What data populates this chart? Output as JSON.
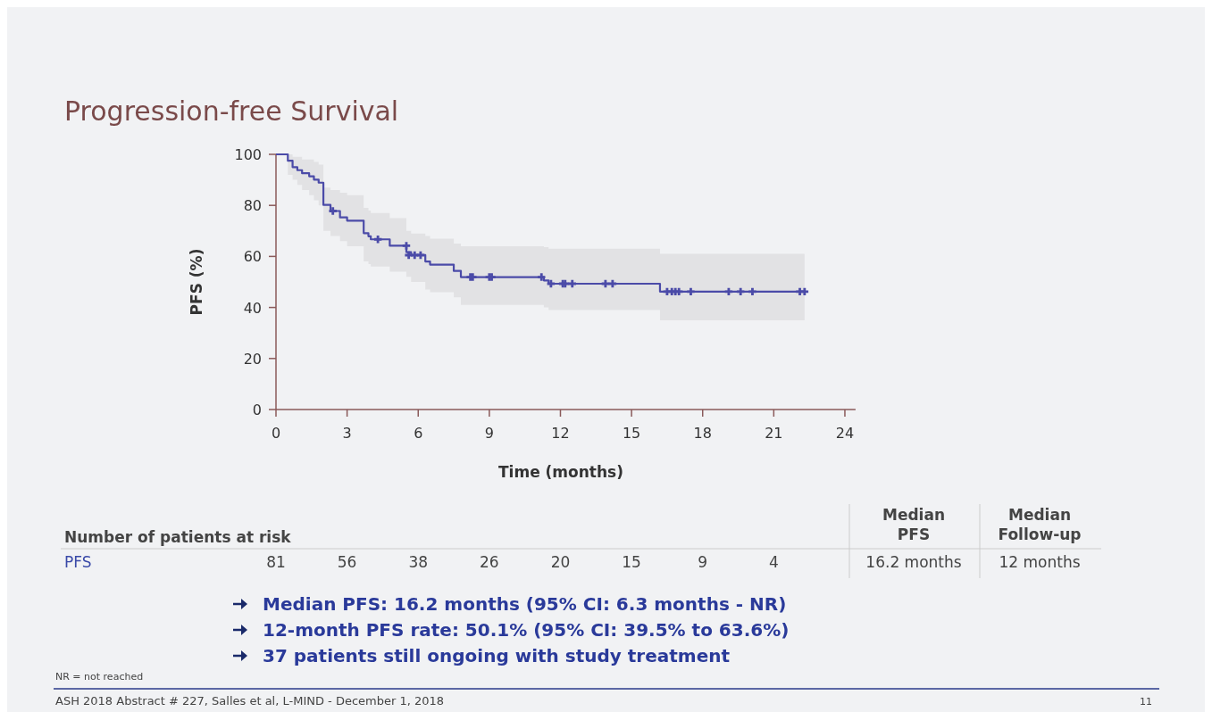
{
  "chart_data": {
    "type": "step",
    "title": "Progression-free Survival",
    "xlabel": "Time (months)",
    "ylabel": "PFS (%)",
    "xlim": [
      0,
      24.45
    ],
    "xticks": [
      0,
      3,
      6,
      9,
      12,
      15,
      18,
      21,
      24
    ],
    "ylim": [
      0,
      100
    ],
    "yticks": [
      0,
      20,
      40,
      60,
      80,
      100
    ],
    "grid": false,
    "series": [
      {
        "type": "step",
        "color": "#4b4ba8",
        "line_style": "solid",
        "marker": "none",
        "x": [
          0,
          0.5,
          0.7,
          0.9,
          1.1,
          1.4,
          1.6,
          1.8,
          2.0,
          2.3,
          2.7,
          3.0,
          3.7,
          3.9,
          4.0,
          4.8,
          5.5,
          5.7,
          6.3,
          6.5,
          7.5,
          7.8,
          11.3,
          11.5,
          16.2,
          22.3
        ],
        "values": [
          100,
          97.5,
          95,
          93.8,
          92.6,
          91.4,
          90.1,
          88.9,
          80.2,
          77.8,
          75.3,
          74.0,
          69.1,
          67.9,
          66.7,
          64.2,
          61.7,
          60.5,
          58.0,
          56.8,
          54.3,
          51.9,
          50.6,
          49.3,
          46.2,
          46.2
        ],
        "lower": [
          100,
          92,
          90,
          88,
          86,
          84,
          82,
          80,
          70,
          68,
          66,
          64,
          58,
          57,
          56,
          54,
          52,
          50,
          47,
          46,
          44,
          41,
          40,
          39,
          35,
          35
        ],
        "upper": [
          100,
          100,
          99,
          99,
          98,
          98,
          97,
          96,
          87,
          86,
          85,
          84,
          79,
          78,
          77,
          75,
          70,
          69,
          68,
          67,
          65,
          64,
          63.6,
          63,
          61,
          61
        ]
      },
      {
        "type": "scatter",
        "color": "#4b4ba8",
        "marker": "cross",
        "x": [
          2.4,
          4.3,
          5.5,
          5.6,
          5.85,
          6.1,
          8.2,
          8.3,
          9.0,
          9.1,
          11.2,
          11.6,
          12.1,
          12.2,
          12.5,
          13.9,
          14.2,
          16.5,
          16.7,
          16.85,
          17.0,
          17.5,
          19.1,
          19.6,
          20.1,
          22.1,
          22.3
        ],
        "values": [
          77.8,
          66.7,
          64.2,
          60.5,
          60.5,
          60.5,
          51.9,
          51.9,
          51.9,
          51.9,
          51.9,
          49.3,
          49.3,
          49.3,
          49.3,
          49.3,
          49.3,
          46.2,
          46.2,
          46.2,
          46.2,
          46.2,
          46.2,
          46.2,
          46.2,
          46.2,
          46.2
        ]
      }
    ],
    "annotations": [
      "81",
      "56",
      "38",
      "26",
      "20",
      "15",
      "9",
      "4",
      "Number of patients at risk",
      "PFS",
      "Median PFS",
      "Median Follow-up",
      "16.2 months",
      "12 months",
      "Median PFS: 16.2 months (95% CI: 6.3 months - NR)",
      "12-month PFS rate: 50.1% (95% CI: 39.5% to 63.6%)",
      "37 patients still ongoing with study treatment",
      "NR = not reached",
      "ASH 2018 Abstract # 227, Salles et al, L-MIND - December 1, 2018",
      "11"
    ]
  }
}
